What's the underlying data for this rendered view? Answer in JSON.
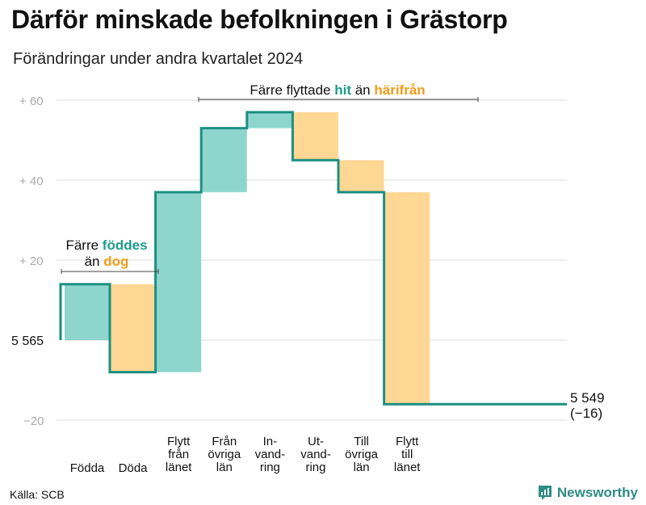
{
  "title": "Därför minskade befolkningen i Grästorp",
  "subtitle": "Förändringar under andra kvartalet 2024",
  "source": "Källa: SCB",
  "brand": {
    "name": "Newsworthy",
    "icon": "bar-chart-icon"
  },
  "colors": {
    "increase": "#8ed6cd",
    "decrease": "#fdd793",
    "line": "#1c8f82",
    "grid": "#dedede",
    "teal_text": "#1c9c8e",
    "orange_text": "#f39c1a"
  },
  "annotations": {
    "births": {
      "line1_prefix": "Färre ",
      "line1_highlight": "föddes",
      "line2_prefix": "än ",
      "line2_highlight": "dog"
    },
    "migration": {
      "prefix": "Färre flyttade ",
      "highlight1": "hit",
      "middle": " än ",
      "highlight2": "härifrån"
    }
  },
  "chart_data": {
    "type": "waterfall",
    "title": "Därför minskade befolkningen i Grästorp",
    "subtitle": "Förändringar under andra kvartalet 2024",
    "start_value": 5565,
    "start_label": "5 565",
    "end_value": 5549,
    "end_label": "5 549",
    "end_change_label": "(−16)",
    "ylim": [
      -20,
      60
    ],
    "yticks": [
      {
        "value": 60,
        "label": "+  60"
      },
      {
        "value": 40,
        "label": "+  40"
      },
      {
        "value": 20,
        "label": "+  20"
      },
      {
        "value": 0,
        "label": "5  565"
      },
      {
        "value": -20,
        "label": "−20"
      }
    ],
    "grid": true,
    "categories": [
      {
        "name": "Födda",
        "lines": [
          "Födda"
        ],
        "value": 14
      },
      {
        "name": "Döda",
        "lines": [
          "Döda"
        ],
        "value": -22
      },
      {
        "name": "Flytt från länet",
        "lines": [
          "Flytt",
          "från",
          "länet"
        ],
        "value": 45
      },
      {
        "name": "Från övriga län",
        "lines": [
          "Från",
          "övriga",
          "län"
        ],
        "value": 16
      },
      {
        "name": "Invandring",
        "lines": [
          "In-",
          "vand-",
          "ring"
        ],
        "value": 4
      },
      {
        "name": "Utvandring",
        "lines": [
          "Ut-",
          "vand-",
          "ring"
        ],
        "value": -12
      },
      {
        "name": "Till övriga län",
        "lines": [
          "Till",
          "övriga",
          "län"
        ],
        "value": -8
      },
      {
        "name": "Flytt till länet",
        "lines": [
          "Flytt",
          "till",
          "länet"
        ],
        "value": -53
      }
    ]
  }
}
